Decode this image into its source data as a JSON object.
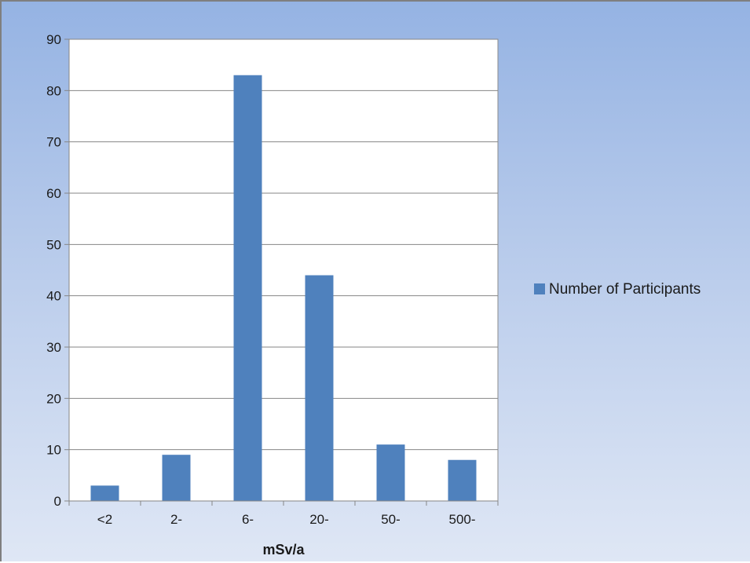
{
  "chart_data": {
    "type": "bar",
    "categories": [
      "<2",
      "2-",
      "6-",
      "20-",
      "50-",
      "500-"
    ],
    "series": [
      {
        "name": "Number of Participants",
        "values": [
          3,
          9,
          83,
          44,
          11,
          8
        ],
        "color": "#4f81bd"
      }
    ],
    "xlabel": "mSv/a",
    "ylabel": "",
    "ylim": [
      0,
      90
    ],
    "yticks": [
      0,
      10,
      20,
      30,
      40,
      50,
      60,
      70,
      80,
      90
    ],
    "grid": true,
    "legend_position": "right"
  }
}
